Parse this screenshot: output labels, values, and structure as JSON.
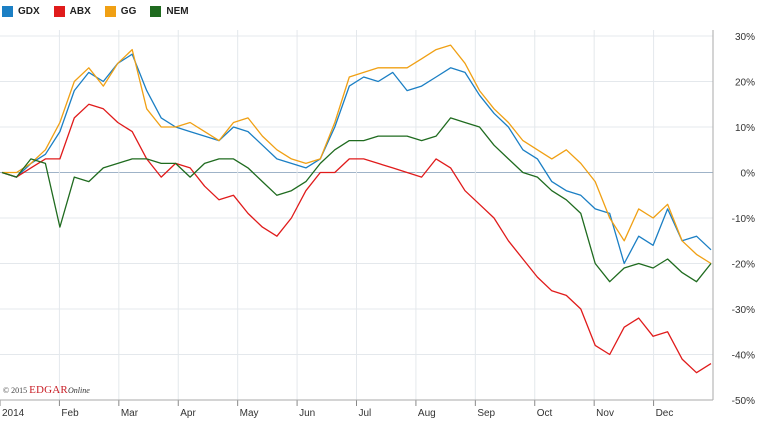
{
  "copyright": {
    "year_text": "© 2015",
    "brand": "EDGAR",
    "brand_suffix": "Online"
  },
  "chart_data": {
    "type": "line",
    "ylim": [
      -50,
      30
    ],
    "yticks": [
      30,
      20,
      10,
      0,
      -10,
      -20,
      -30,
      -40,
      -50
    ],
    "ytick_labels": [
      "30%",
      "20%",
      "10%",
      "0%",
      "-10%",
      "-20%",
      "-30%",
      "-40%",
      "-50%"
    ],
    "months": [
      "2014",
      "Feb",
      "Mar",
      "Apr",
      "May",
      "Jun",
      "Jul",
      "Aug",
      "Sep",
      "Oct",
      "Nov",
      "Dec"
    ],
    "grid": true,
    "legend_position": "top-left",
    "x_note": "values are approximate weekly readings over 2014, index 0 = Jan 1",
    "series": [
      {
        "name": "GDX",
        "color": "#1b7fc4",
        "values": [
          0,
          -1,
          2,
          4,
          9,
          18,
          22,
          20,
          24,
          26,
          18,
          12,
          10,
          9,
          8,
          7,
          10,
          9,
          6,
          3,
          2,
          1,
          3,
          10,
          19,
          21,
          20,
          22,
          18,
          19,
          21,
          23,
          22,
          17,
          13,
          10,
          5,
          3,
          -2,
          -4,
          -5,
          -8,
          -9,
          -20,
          -14,
          -16,
          -8,
          -15,
          -14,
          -17
        ]
      },
      {
        "name": "ABX",
        "color": "#e01b1b",
        "values": [
          0,
          -1,
          1,
          3,
          3,
          12,
          15,
          14,
          11,
          9,
          3,
          -1,
          2,
          1,
          -3,
          -6,
          -5,
          -9,
          -12,
          -14,
          -10,
          -4,
          0,
          0,
          3,
          3,
          2,
          1,
          0,
          -1,
          3,
          1,
          -4,
          -7,
          -10,
          -15,
          -19,
          -23,
          -26,
          -27,
          -30,
          -38,
          -40,
          -34,
          -32,
          -36,
          -35,
          -41,
          -44,
          -42
        ]
      },
      {
        "name": "GG",
        "color": "#f0a014",
        "values": [
          0,
          0,
          2,
          5,
          11,
          20,
          23,
          19,
          24,
          27,
          14,
          10,
          10,
          11,
          9,
          7,
          11,
          12,
          8,
          5,
          3,
          2,
          3,
          11,
          21,
          22,
          23,
          23,
          23,
          25,
          27,
          28,
          24,
          18,
          14,
          11,
          7,
          5,
          3,
          5,
          2,
          -2,
          -10,
          -15,
          -8,
          -10,
          -7,
          -15,
          -18,
          -20
        ]
      },
      {
        "name": "NEM",
        "color": "#1f6b1f",
        "values": [
          0,
          -1,
          3,
          2,
          -12,
          -1,
          -2,
          1,
          2,
          3,
          3,
          2,
          2,
          -1,
          2,
          3,
          3,
          1,
          -2,
          -5,
          -4,
          -2,
          2,
          5,
          7,
          7,
          8,
          8,
          8,
          7,
          8,
          12,
          11,
          10,
          6,
          3,
          0,
          -1,
          -4,
          -6,
          -9,
          -20,
          -24,
          -21,
          -20,
          -21,
          -19,
          -22,
          -24,
          -20
        ]
      }
    ]
  }
}
